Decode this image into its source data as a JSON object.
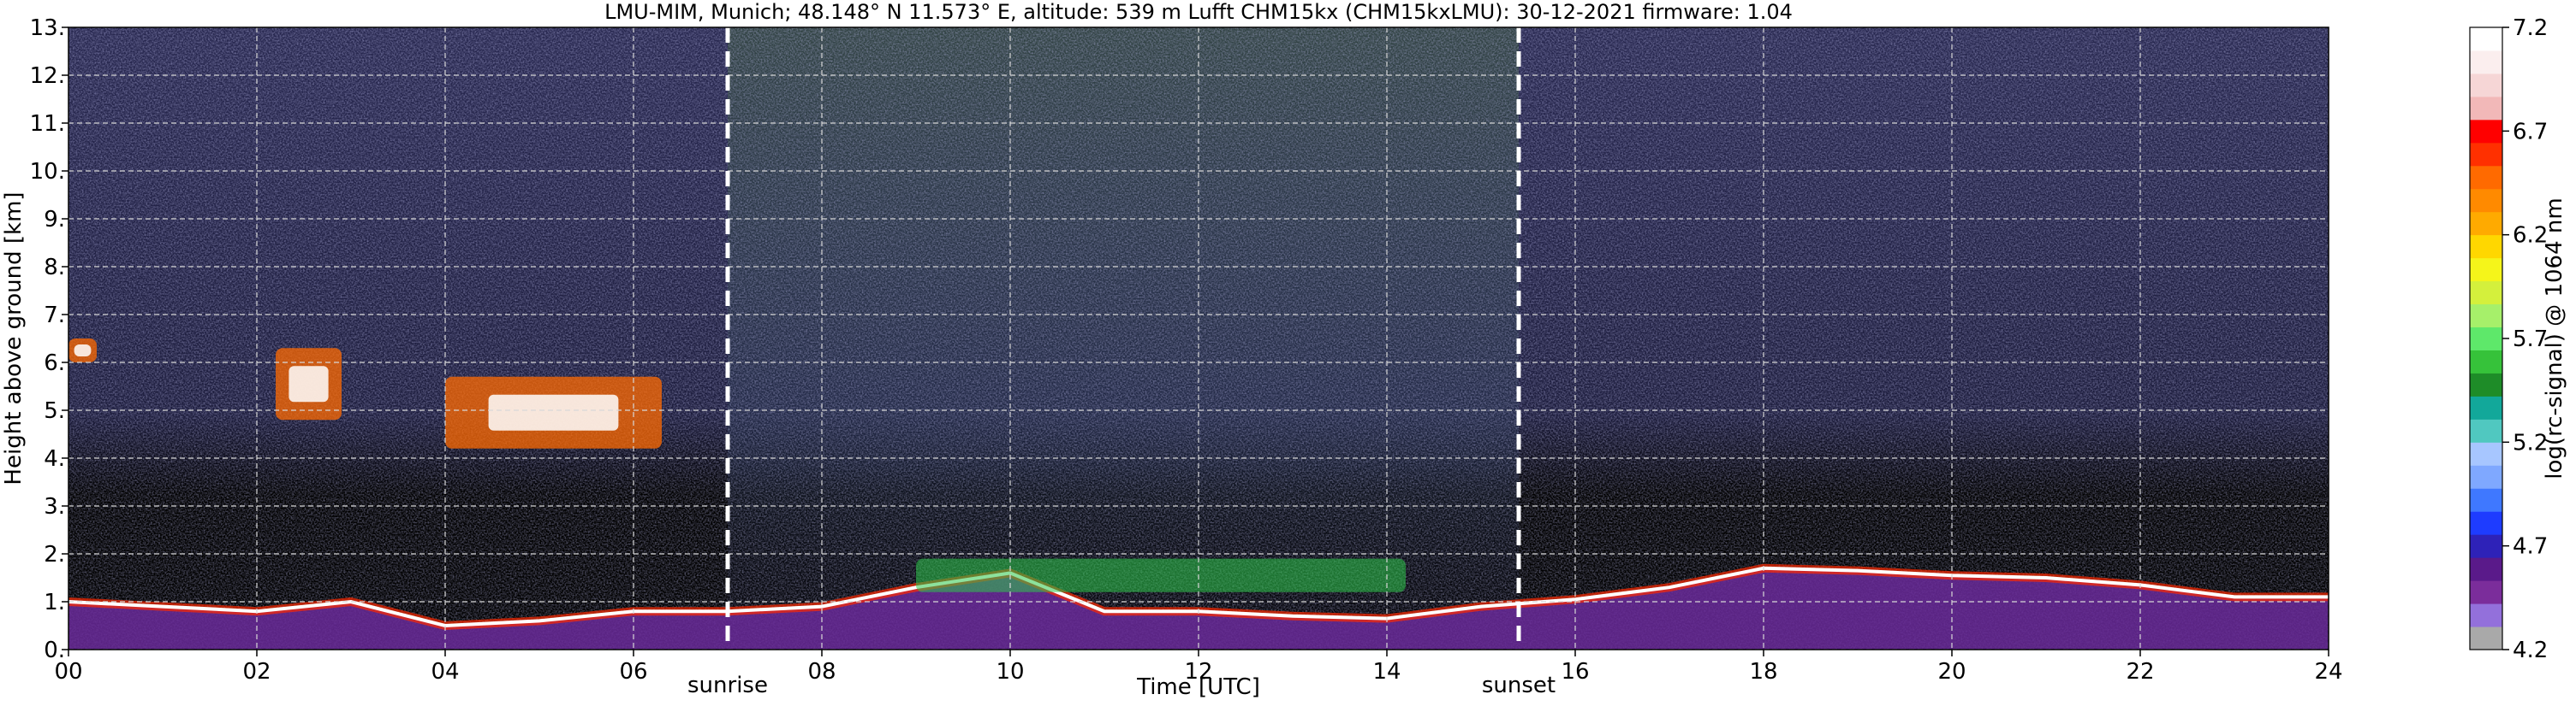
{
  "chart_data": {
    "type": "heatmap",
    "title": "LMU-MIM, Munich; 48.148° N 11.573° E, altitude: 539 m    Lufft CHM15kx (CHM15kxLMU): 30-12-2021    firmware: 1.04",
    "xlabel": "Time [UTC]",
    "ylabel": "Height above ground [km]",
    "xlim": [
      0,
      24
    ],
    "ylim": [
      0,
      13
    ],
    "x_ticks": [
      "00",
      "02",
      "04",
      "06",
      "08",
      "10",
      "12",
      "14",
      "16",
      "18",
      "20",
      "22",
      "24"
    ],
    "x_tick_values": [
      0,
      2,
      4,
      6,
      8,
      10,
      12,
      14,
      16,
      18,
      20,
      22,
      24
    ],
    "y_ticks": [
      "0.",
      "1.",
      "2.",
      "3.",
      "4.",
      "5.",
      "6.",
      "7.",
      "8.",
      "9.",
      "10.",
      "11.",
      "12.",
      "13."
    ],
    "y_tick_values": [
      0,
      1,
      2,
      3,
      4,
      5,
      6,
      7,
      8,
      9,
      10,
      11,
      12,
      13
    ],
    "grid": true,
    "colorbar": {
      "label": "log(rc-signal) @ 1064 nm",
      "range": [
        4.2,
        7.2
      ],
      "ticks": [
        "4.2",
        "4.7",
        "5.2",
        "5.7",
        "6.2",
        "6.7",
        "7.2"
      ],
      "tick_values": [
        4.2,
        4.7,
        5.2,
        5.7,
        6.2,
        6.7,
        7.2
      ],
      "colors": [
        "#a9a9a9",
        "#9370db",
        "#7b2d9b",
        "#5a1a8a",
        "#2e22b8",
        "#1e3cff",
        "#3f78ff",
        "#7fa8ff",
        "#a7c6ff",
        "#50c8c0",
        "#12a89a",
        "#1e8c28",
        "#36c23a",
        "#5ee86a",
        "#a6f06a",
        "#d4f03c",
        "#f5f51a",
        "#ffd700",
        "#ffaa00",
        "#ff8a00",
        "#ff6a00",
        "#ff3000",
        "#ff0000",
        "#f2b8b8",
        "#f6d6d6",
        "#fbeeee",
        "#ffffff"
      ]
    },
    "annotations": [
      {
        "label": "sunrise",
        "x": 7.0
      },
      {
        "label": "sunset",
        "x": 15.4
      }
    ],
    "features": [
      {
        "name": "boundary layer top",
        "t": [
          0,
          1,
          2,
          3,
          4,
          5,
          6,
          7,
          8,
          9,
          10,
          11,
          12,
          13,
          14,
          15,
          16,
          17,
          18,
          19,
          20,
          21,
          22,
          23,
          24
        ],
        "height_km": [
          1.0,
          0.9,
          0.8,
          1.0,
          0.5,
          0.6,
          0.8,
          0.8,
          0.9,
          1.3,
          1.6,
          0.8,
          0.8,
          0.7,
          0.65,
          0.9,
          1.05,
          1.3,
          1.7,
          1.65,
          1.55,
          1.5,
          1.35,
          1.1,
          1.1
        ]
      },
      {
        "name": "cloud layer",
        "t": [
          2.2,
          2.9
        ],
        "height_km": [
          4.8,
          6.3
        ]
      },
      {
        "name": "cloud layer",
        "t": [
          4.0,
          6.3
        ],
        "height_km": [
          4.2,
          5.7
        ]
      },
      {
        "name": "cloud layer",
        "t": [
          0.0,
          0.3
        ],
        "height_km": [
          6.0,
          6.5
        ]
      },
      {
        "name": "elevated aerosol",
        "t": [
          9.0,
          14.2
        ],
        "height_km": [
          1.2,
          1.9
        ]
      }
    ]
  }
}
